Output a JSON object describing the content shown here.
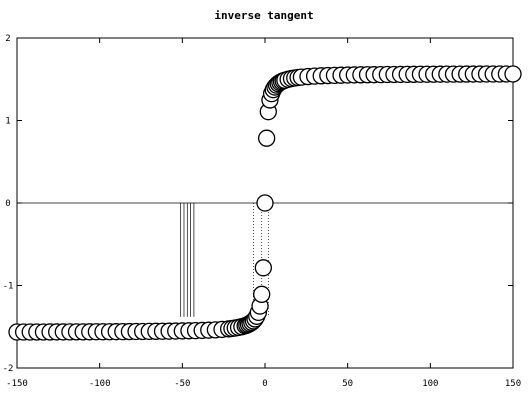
{
  "chart_data": {
    "type": "scatter",
    "title": "inverse tangent",
    "xlabel": "",
    "ylabel": "",
    "xlim": [
      -150,
      150
    ],
    "ylim": [
      -2,
      2
    ],
    "x_ticks": [
      -150,
      -100,
      -50,
      0,
      50,
      100,
      150
    ],
    "y_ticks": [
      -2,
      -1,
      0,
      1,
      2
    ],
    "x_tick_labels": [
      "-150",
      "-100",
      "-50",
      "0",
      "50",
      "100",
      "150"
    ],
    "y_tick_labels": [
      "-2",
      "-1",
      "0",
      "1",
      "2"
    ],
    "grid": false,
    "marker": "open-circle",
    "series": [
      {
        "x": [
          -150,
          -146,
          -142,
          -138,
          -134,
          -130,
          -126,
          -122,
          -118,
          -114,
          -110,
          -106,
          -102,
          -98,
          -94,
          -90,
          -86,
          -82,
          -78,
          -74,
          -70,
          -66,
          -62,
          -58,
          -54,
          -50,
          -46,
          -42,
          -38,
          -34,
          -30,
          -26,
          -22,
          -20,
          -18,
          -16,
          -14,
          -12,
          -11,
          -10,
          -9,
          -8,
          -7,
          -6,
          -5,
          -4,
          -3,
          -2,
          -1,
          0,
          1,
          2,
          3,
          4,
          5,
          6,
          7,
          8,
          9,
          10,
          11,
          12,
          14,
          16,
          18,
          20,
          22,
          26,
          30,
          34,
          38,
          42,
          46,
          50,
          54,
          58,
          62,
          66,
          70,
          74,
          78,
          82,
          86,
          90,
          94,
          98,
          102,
          106,
          110,
          114,
          118,
          122,
          126,
          130,
          134,
          138,
          142,
          146,
          150
        ],
        "y": [
          -1.564,
          -1.564,
          -1.5637,
          -1.5635,
          -1.5633,
          -1.5631,
          -1.5629,
          -1.5626,
          -1.5623,
          -1.562,
          -1.5617,
          -1.5614,
          -1.561,
          -1.5606,
          -1.5602,
          -1.5597,
          -1.5592,
          -1.5586,
          -1.558,
          -1.5573,
          -1.5565,
          -1.5556,
          -1.5547,
          -1.5536,
          -1.5523,
          -1.5508,
          -1.549,
          -1.547,
          -1.5445,
          -1.5414,
          -1.5375,
          -1.5324,
          -1.5254,
          -1.5208,
          -1.5153,
          -1.5084,
          -1.4995,
          -1.4877,
          -1.4801,
          -1.4711,
          -1.4601,
          -1.4464,
          -1.4289,
          -1.4056,
          -1.3734,
          -1.3258,
          -1.249,
          -1.1071,
          -0.7854,
          0,
          0.7854,
          1.1071,
          1.249,
          1.3258,
          1.3734,
          1.4056,
          1.4289,
          1.4464,
          1.4601,
          1.4711,
          1.4801,
          1.4877,
          1.4995,
          1.5084,
          1.5153,
          1.5208,
          1.5254,
          1.5324,
          1.5375,
          1.5414,
          1.5445,
          1.547,
          1.549,
          1.5508,
          1.5523,
          1.5536,
          1.5547,
          1.5556,
          1.5565,
          1.5573,
          1.558,
          1.5586,
          1.5592,
          1.5597,
          1.5602,
          1.5606,
          1.561,
          1.5614,
          1.5617,
          1.562,
          1.5623,
          1.5626,
          1.5629,
          1.5631,
          1.5633,
          1.5635,
          1.5637,
          1.564,
          1.564
        ]
      }
    ],
    "vertical_lines": [
      {
        "x": -51,
        "style": "solid"
      },
      {
        "x": -49,
        "style": "solid"
      },
      {
        "x": -47,
        "style": "solid"
      },
      {
        "x": -45,
        "style": "solid"
      },
      {
        "x": -43,
        "style": "solid"
      },
      {
        "x": -7,
        "style": "dotted"
      },
      {
        "x": -2,
        "style": "dotted"
      },
      {
        "x": 2,
        "style": "dotted"
      }
    ]
  }
}
